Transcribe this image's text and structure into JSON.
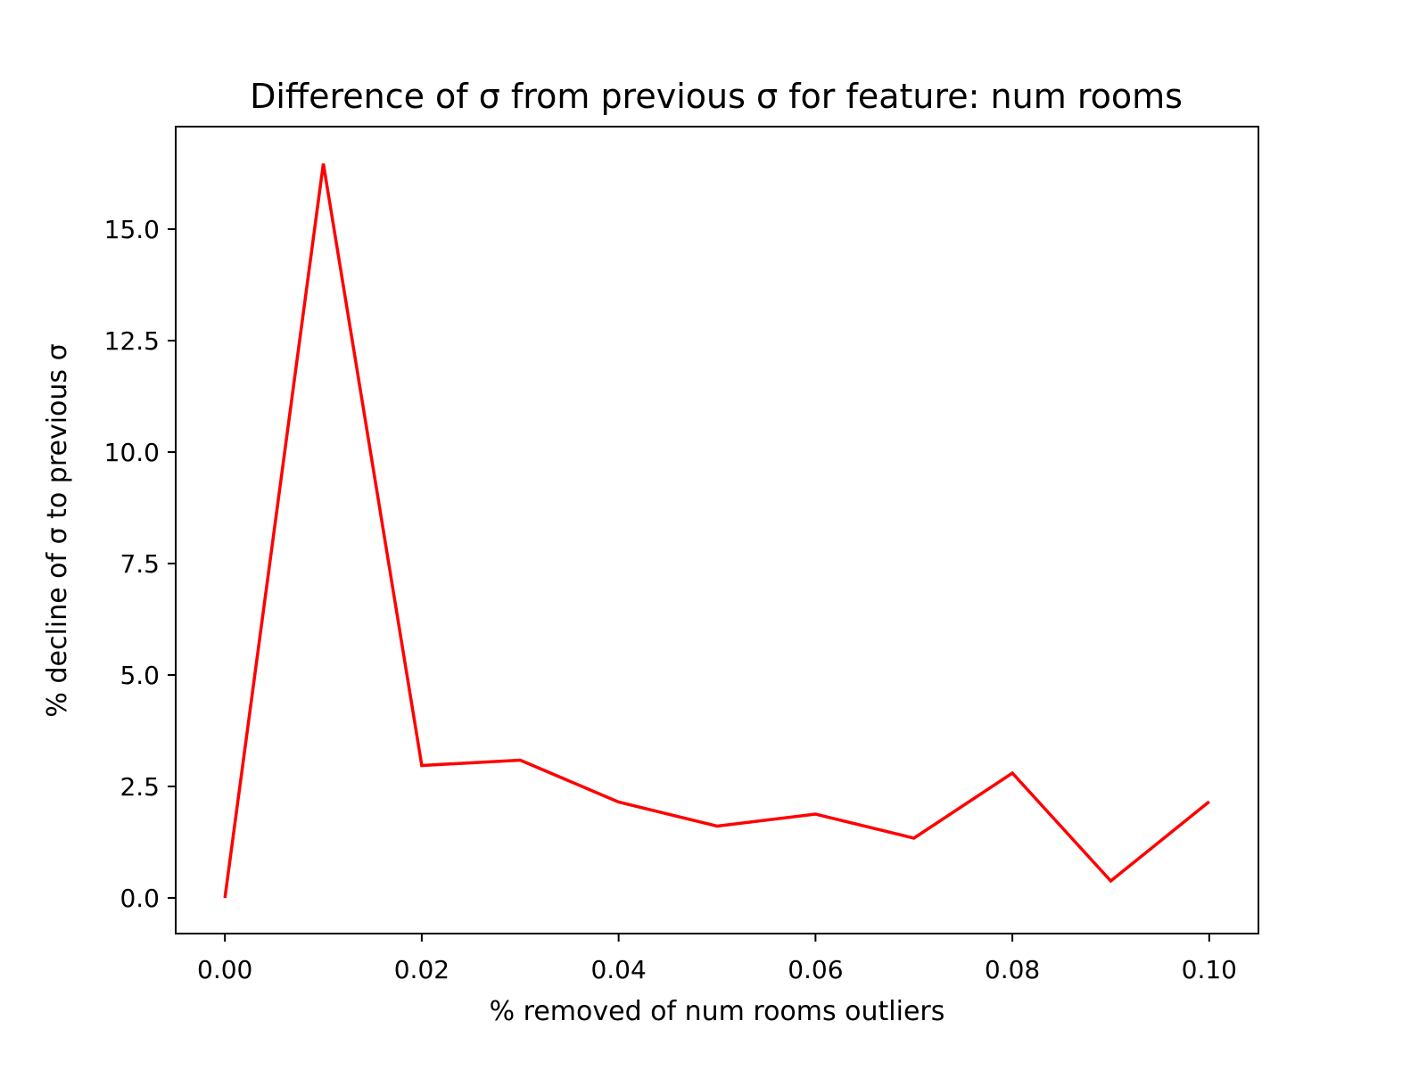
{
  "chart_data": {
    "type": "line",
    "title": "Difference of σ from previous σ for feature: num rooms",
    "xlabel": "% removed of num rooms outliers",
    "ylabel": "% decline of σ to previous σ",
    "xlim": [
      -0.005,
      0.105
    ],
    "ylim": [
      -0.8,
      17.3
    ],
    "x_ticks": [
      0.0,
      0.02,
      0.04,
      0.06,
      0.08,
      0.1
    ],
    "x_tick_labels": [
      "0.00",
      "0.02",
      "0.04",
      "0.06",
      "0.08",
      "0.10"
    ],
    "y_ticks": [
      0.0,
      2.5,
      5.0,
      7.5,
      10.0,
      12.5,
      15.0
    ],
    "y_tick_labels": [
      "0.0",
      "2.5",
      "5.0",
      "7.5",
      "10.0",
      "12.5",
      "15.0"
    ],
    "grid": false,
    "series": [
      {
        "color": "#ff0000",
        "x": [
          0.0,
          0.01,
          0.02,
          0.03,
          0.04,
          0.05,
          0.06,
          0.07,
          0.08,
          0.09,
          0.1
        ],
        "y": [
          0.0,
          16.47,
          2.97,
          3.09,
          2.15,
          1.61,
          1.88,
          1.34,
          2.8,
          0.38,
          2.16
        ]
      }
    ]
  }
}
